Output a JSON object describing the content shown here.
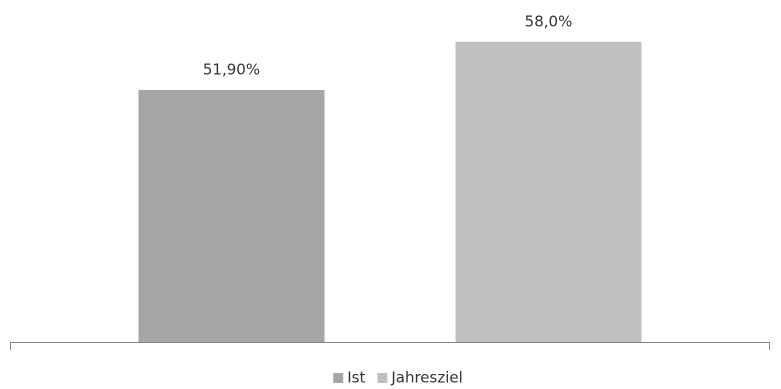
{
  "chart_data": {
    "type": "bar",
    "categories": [
      null
    ],
    "series": [
      {
        "name": "Ist",
        "color": "#a5a5a5",
        "values": [
          51.9
        ],
        "value_labels": [
          "51,90%"
        ]
      },
      {
        "name": "Jahresziel",
        "color": "#c0c0c0",
        "values": [
          58.0
        ],
        "value_labels": [
          "58,0%"
        ]
      }
    ],
    "ylim": [
      20,
      60
    ],
    "legend": "bottom"
  }
}
